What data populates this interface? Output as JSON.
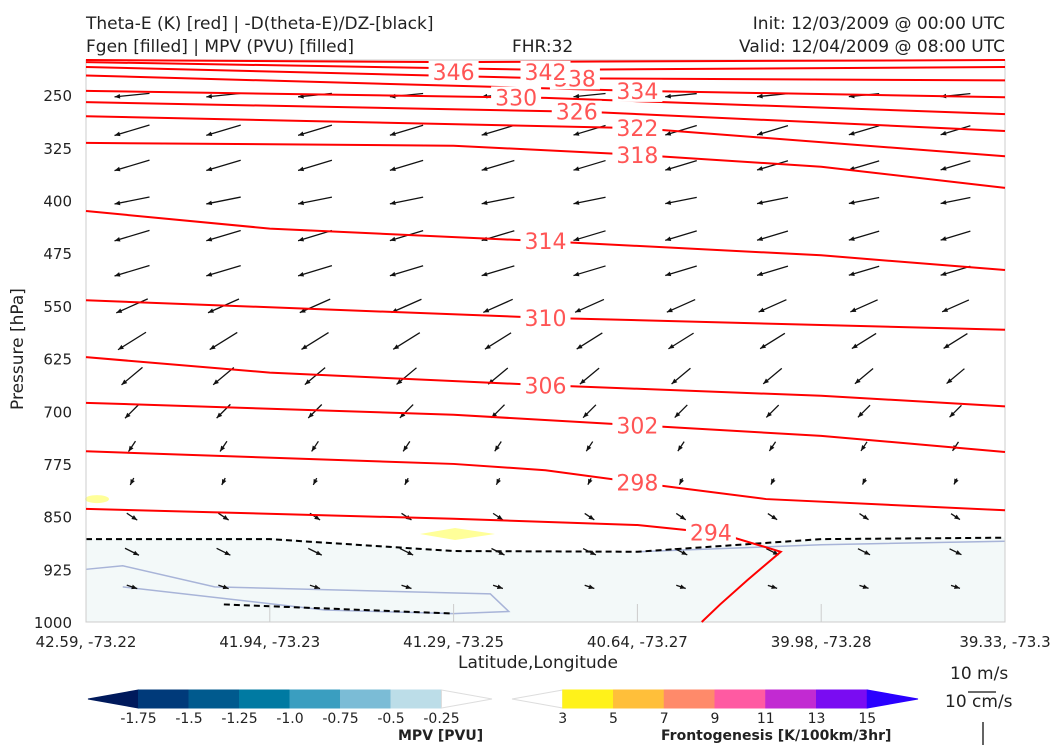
{
  "chart_data": {
    "type": "cross-section",
    "title_left_1": "Theta-E (K) [red] | -D(theta-E)/DZ-[black]",
    "title_left_2": "Fgen [filled] | MPV (PVU) [filled]",
    "title_center": "FHR:32",
    "title_right_1": "Init: 12/03/2009 @ 00:00 UTC",
    "title_right_2": "Valid: 12/04/2009 @ 08:00 UTC",
    "xlabel": "Latitude,Longitude",
    "ylabel": "Pressure [hPa]",
    "ylim": [
      1000,
      200
    ],
    "yticks": [
      "250",
      "325",
      "400",
      "475",
      "550",
      "625",
      "700",
      "775",
      "850",
      "925",
      "1000"
    ],
    "xticks": [
      "42.59, -73.22",
      "41.94, -73.23",
      "41.29, -73.25",
      "40.64, -73.27",
      "39.98, -73.28",
      "39.33, -73.3"
    ],
    "theta_e": [
      {
        "label": "294",
        "pts": [
          [
            0,
            839
          ],
          [
            2,
            853
          ],
          [
            3,
            862
          ],
          [
            3.45,
            874
          ],
          [
            3.78,
            900
          ],
          [
            3.6,
            940
          ],
          [
            3.45,
            975
          ],
          [
            3.35,
            1000
          ]
        ],
        "lx": 3.4
      },
      {
        "label": "298",
        "pts": [
          [
            0,
            757
          ],
          [
            2,
            775
          ],
          [
            2.5,
            784
          ],
          [
            3.1,
            805
          ],
          [
            3.7,
            825
          ],
          [
            5,
            841
          ]
        ],
        "lx": 3.0
      },
      {
        "label": "302",
        "pts": [
          [
            0,
            688
          ],
          [
            2,
            705
          ],
          [
            3,
            720
          ],
          [
            4,
            735
          ],
          [
            5,
            758
          ]
        ],
        "lx": 3.0
      },
      {
        "label": "306",
        "pts": [
          [
            0,
            623
          ],
          [
            1,
            645
          ],
          [
            2.5,
            663
          ],
          [
            4,
            678
          ],
          [
            5,
            693
          ]
        ],
        "lx": 2.5
      },
      {
        "label": "310",
        "pts": [
          [
            0,
            542
          ],
          [
            2.5,
            567
          ],
          [
            5,
            584
          ]
        ],
        "lx": 2.5
      },
      {
        "label": "314",
        "pts": [
          [
            0,
            415
          ],
          [
            1,
            440
          ],
          [
            2.5,
            458
          ],
          [
            4,
            478
          ],
          [
            5,
            499
          ]
        ],
        "lx": 2.5
      },
      {
        "label": "318",
        "pts": [
          [
            0,
            318
          ],
          [
            2,
            322
          ],
          [
            3,
            335
          ],
          [
            4,
            352
          ],
          [
            5,
            382
          ]
        ],
        "lx": 3.0
      },
      {
        "label": "322",
        "pts": [
          [
            0,
            280
          ],
          [
            3,
            297
          ],
          [
            5,
            337
          ]
        ],
        "lx": 3.0
      },
      {
        "label": "326",
        "pts": [
          [
            0,
            260
          ],
          [
            2.75,
            274
          ],
          [
            5,
            301
          ]
        ],
        "lx": 2.75
      },
      {
        "label": "330",
        "pts": [
          [
            0,
            244
          ],
          [
            2.5,
            254
          ],
          [
            5,
            277
          ]
        ],
        "lx": 2.5
      },
      {
        "label": "334",
        "pts": [
          [
            0,
            222
          ],
          [
            3,
            244
          ],
          [
            5,
            253
          ]
        ],
        "lx": 3.0
      },
      {
        "label": "338",
        "pts": [
          [
            0,
            210
          ],
          [
            2.5,
            226
          ],
          [
            5,
            229
          ]
        ],
        "lx": 2.5
      },
      {
        "label": "342",
        "pts": [
          [
            0,
            203
          ],
          [
            2.5,
            214
          ],
          [
            5,
            210
          ]
        ],
        "lx": 2.5
      },
      {
        "label": "346",
        "pts": [
          [
            0,
            200
          ],
          [
            2,
            203
          ],
          [
            5,
            200
          ]
        ],
        "lx": 2.0
      }
    ],
    "wind_rows": [
      {
        "p": 250,
        "u": -10,
        "v": -1
      },
      {
        "p": 300,
        "u": -10,
        "v": -3
      },
      {
        "p": 350,
        "u": -10,
        "v": -3
      },
      {
        "p": 400,
        "u": -10,
        "v": -2
      },
      {
        "p": 450,
        "u": -10,
        "v": -3
      },
      {
        "p": 500,
        "u": -10,
        "v": -3
      },
      {
        "p": 550,
        "u": -9,
        "v": -4
      },
      {
        "p": 600,
        "u": -8,
        "v": -5
      },
      {
        "p": 650,
        "u": -6,
        "v": -5
      },
      {
        "p": 700,
        "u": -4,
        "v": -4
      },
      {
        "p": 750,
        "u": -2,
        "v": -3
      },
      {
        "p": 800,
        "u": -1,
        "v": -2
      },
      {
        "p": 850,
        "u": 3,
        "v": -2
      },
      {
        "p": 900,
        "u": 4,
        "v": -2
      },
      {
        "p": 950,
        "u": 3,
        "v": -1
      }
    ],
    "mpv_colorbar": {
      "label": "MPV [PVU]",
      "ticks": [
        "-1.75",
        "-1.5",
        "-1.25",
        "-1.0",
        "-0.75",
        "-0.5",
        "-0.25"
      ],
      "colors": [
        "#001a5c",
        "#003a7a",
        "#005a8e",
        "#007aa2",
        "#3a9ec0",
        "#7bbcd6",
        "#bcdde8",
        "#ffffff"
      ]
    },
    "fgen_colorbar": {
      "label": "Frontogenesis [K/100km/3hr]",
      "ticks": [
        "3",
        "5",
        "7",
        "9",
        "11",
        "13",
        "15"
      ],
      "colors": [
        "#ffffff",
        "#fff21a",
        "#ffbf3a",
        "#ff8a6a",
        "#ff5aa2",
        "#c22ad2",
        "#7a0cf2",
        "#2a00ff"
      ]
    },
    "ref_vectors": [
      "10 m/s",
      "10 cm/s"
    ],
    "colors": {
      "theta": "#ff0000",
      "theta_label": "#ff5555",
      "mpv_fill": "#f3f9f9",
      "fgen": "#ffff99"
    }
  }
}
